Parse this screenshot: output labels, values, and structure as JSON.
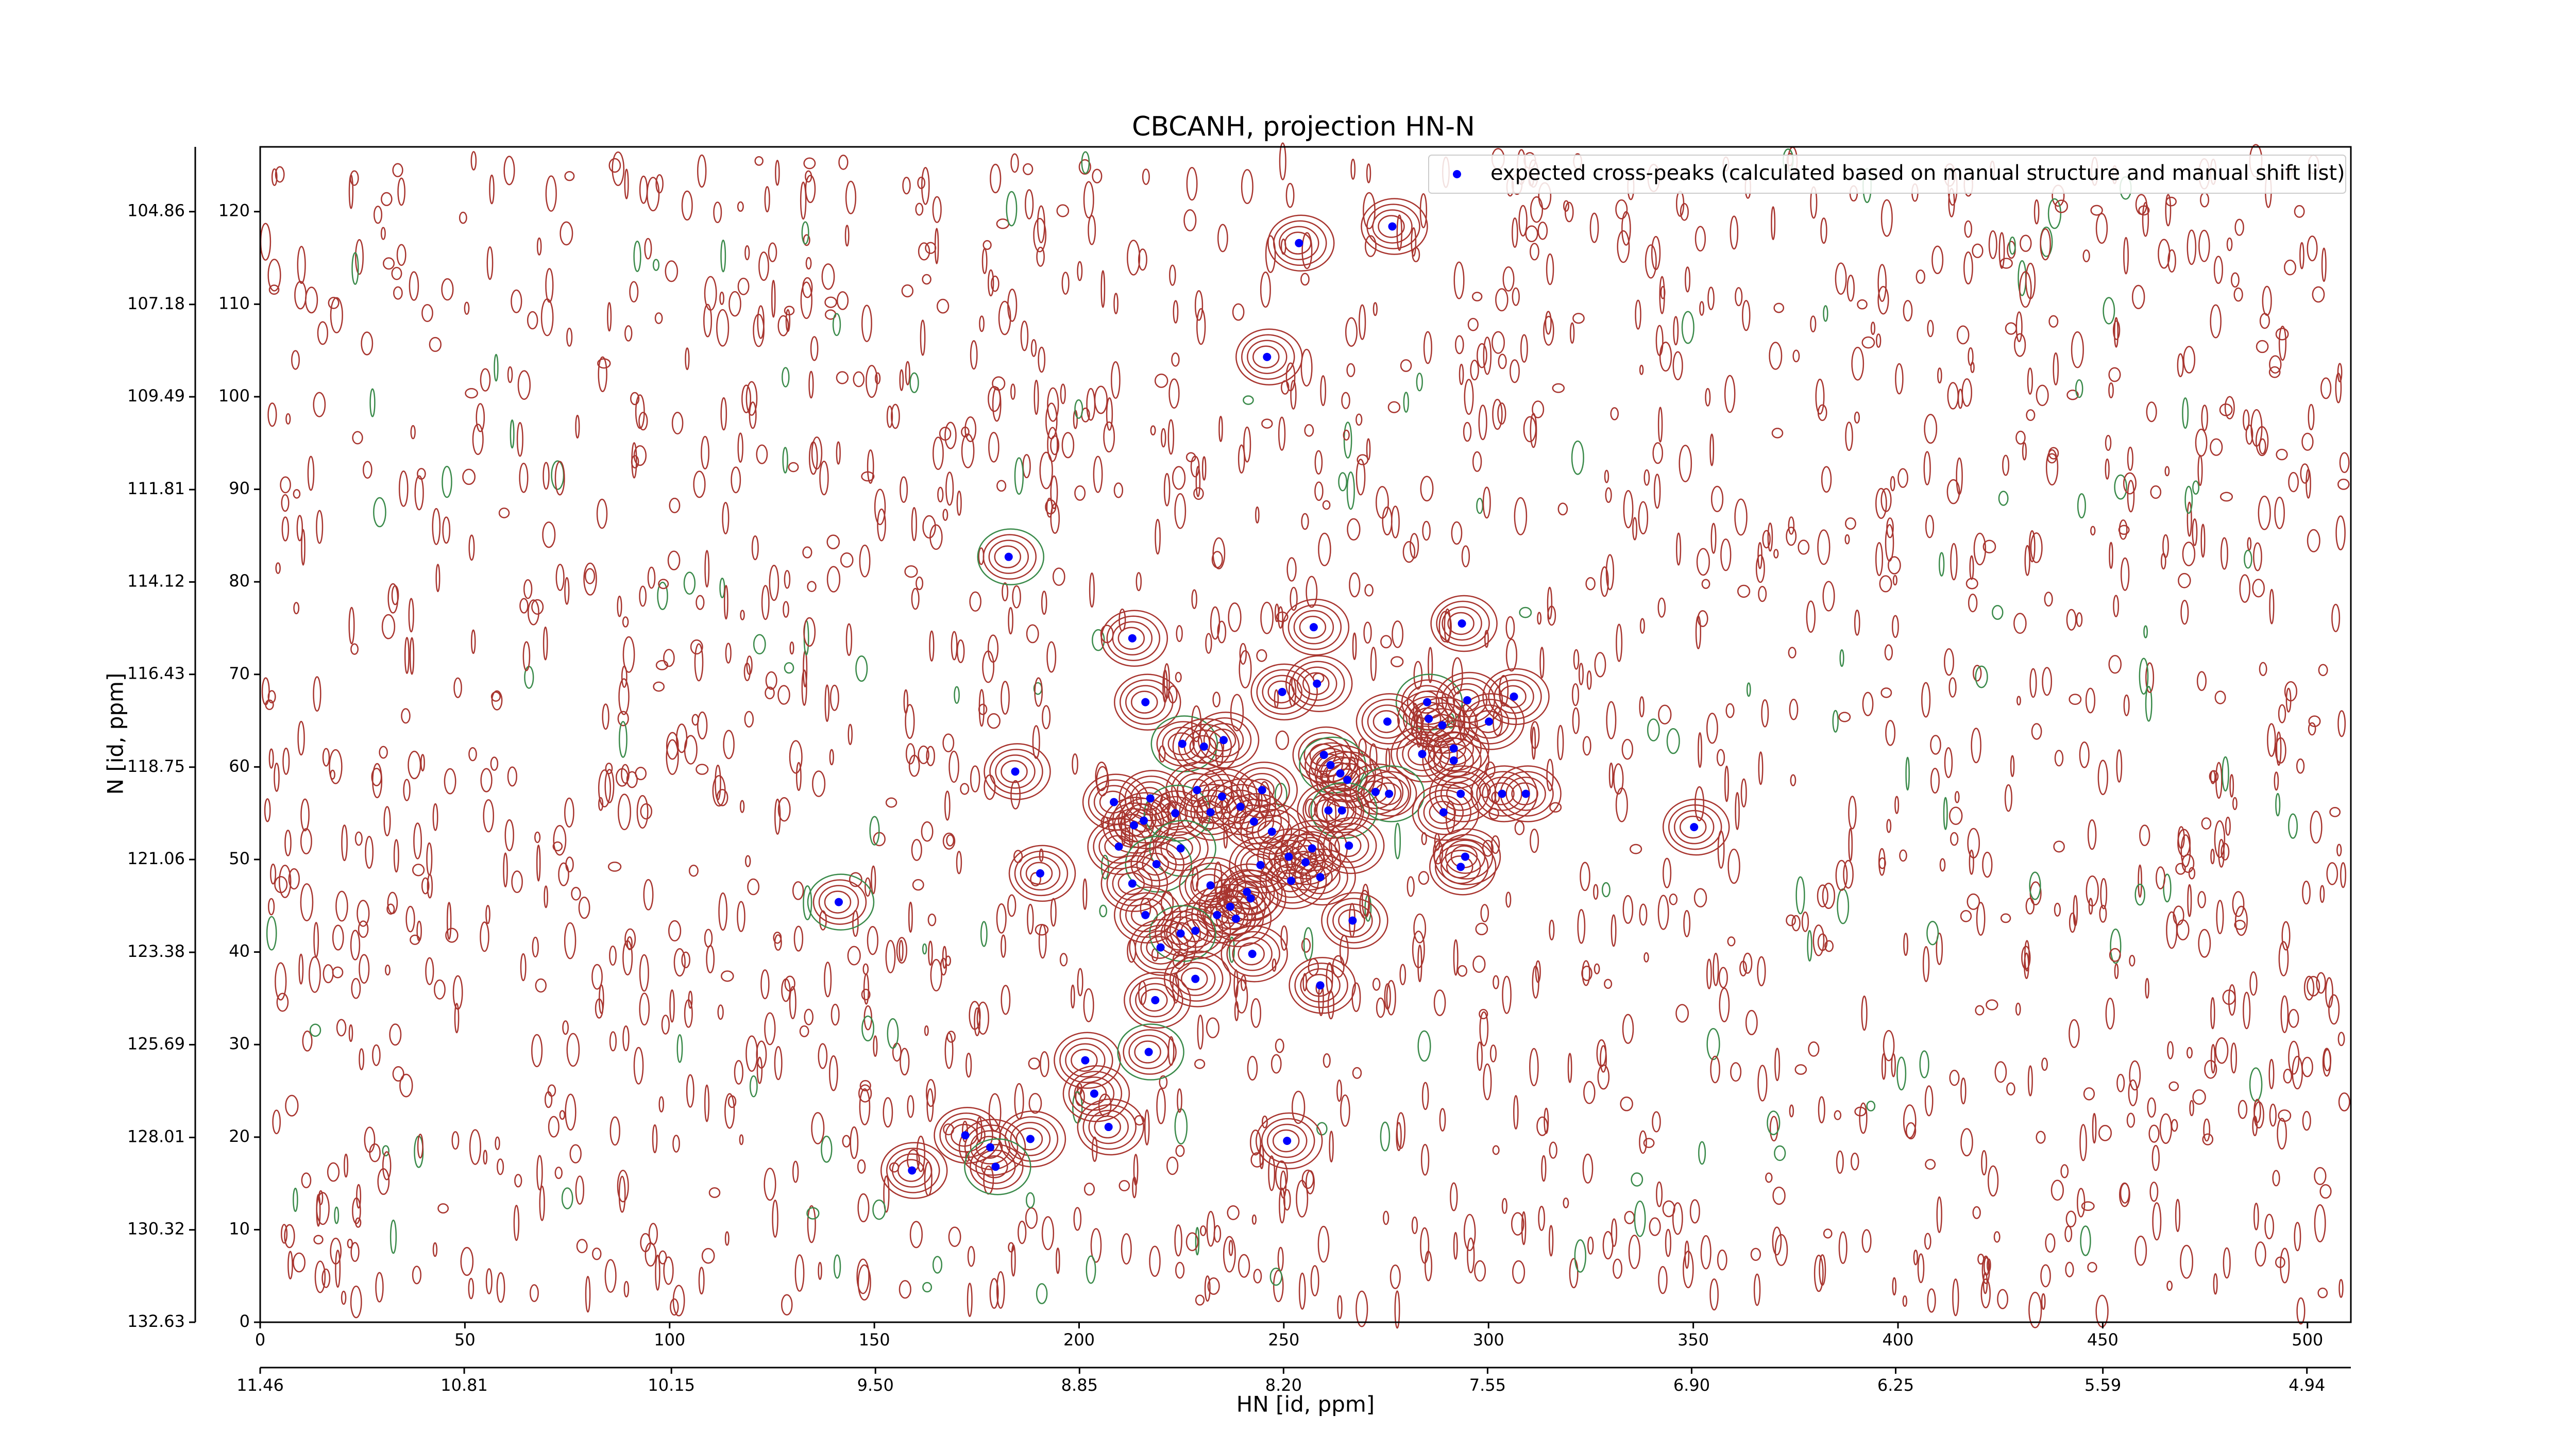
{
  "chart_data": {
    "type": "scatter",
    "title": "CBCANH, projection HN-N",
    "xlabel": "HN [id, ppm]",
    "ylabel": "N [id, ppm]",
    "xlim": [
      0,
      510.6
    ],
    "ylim": [
      0,
      127
    ],
    "xticks": [
      0,
      50,
      100,
      150,
      200,
      250,
      300,
      350,
      400,
      450,
      500
    ],
    "yticks": [
      0,
      10,
      20,
      30,
      40,
      50,
      60,
      70,
      80,
      90,
      100,
      110,
      120
    ],
    "x2lim": [
      11.46,
      4.8
    ],
    "x2ticks": [
      11.46,
      10.81,
      10.15,
      {
        "value": 9.5,
        "label": "9.50"
      },
      8.85,
      {
        "value": 8.2,
        "label": "8.20"
      },
      7.55,
      {
        "value": 6.9,
        "label": "6.90"
      },
      6.25,
      5.59,
      4.94
    ],
    "y2lim": [
      132.63,
      103.24
    ],
    "y2ticks": [
      132.63,
      130.32,
      128.01,
      125.69,
      123.38,
      121.06,
      118.75,
      116.43,
      114.12,
      111.81,
      109.49,
      107.18,
      104.86
    ],
    "legend": "upper right",
    "series": [
      {
        "name": "expected cross-peaks (calculated based on manual structure and manual shift list)",
        "color": "#0000ff",
        "x": [
          276.5,
          253.7,
          245.9,
          182.8,
          257.3,
          293.5,
          213.0,
          249.6,
          258.1,
          216.2,
          285.0,
          294.8,
          306.2,
          285.4,
          275.3,
          288.7,
          300.1,
          225.2,
          230.5,
          235.3,
          283.8,
          291.5,
          291.5,
          259.8,
          261.4,
          263.8,
          265.5,
          184.4,
          244.7,
          228.8,
          272.4,
          275.7,
          303.3,
          309.1,
          293.2,
          208.5,
          217.4,
          234.9,
          223.5,
          213.4,
          215.8,
          239.4,
          232.1,
          242.7,
          260.9,
          264.2,
          289.0,
          247.1,
          350.2,
          256.9,
          265.9,
          251.2,
          224.8,
          209.7,
          255.3,
          244.3,
          294.3,
          293.2,
          190.5,
          218.9,
          258.9,
          251.8,
          213.0,
          232.1,
          241.0,
          241.9,
          141.3,
          216.2,
          236.9,
          233.7,
          238.3,
          266.8,
          228.4,
          224.8,
          219.9,
          242.3,
          228.4,
          258.9,
          218.6,
          201.5,
          217.0,
          203.7,
          207.2,
          172.2,
          250.8,
          188.1,
          178.3,
          179.6,
          159.2
        ],
        "values": [
          118.4,
          116.6,
          104.3,
          82.7,
          75.1,
          75.5,
          73.9,
          68.1,
          69.0,
          67.0,
          67.0,
          67.2,
          67.6,
          65.2,
          64.9,
          64.5,
          64.9,
          62.5,
          62.2,
          62.9,
          61.4,
          62.0,
          60.7,
          61.3,
          60.2,
          59.3,
          58.6,
          59.5,
          57.5,
          57.5,
          57.3,
          57.1,
          57.1,
          57.1,
          57.1,
          56.2,
          56.6,
          56.8,
          55.0,
          53.7,
          54.2,
          55.7,
          55.1,
          54.1,
          55.3,
          55.3,
          55.1,
          53.0,
          53.5,
          51.2,
          51.5,
          50.3,
          51.2,
          51.4,
          49.7,
          49.4,
          50.3,
          49.2,
          48.5,
          49.5,
          48.1,
          47.7,
          47.4,
          47.2,
          46.5,
          45.8,
          45.4,
          44.0,
          44.9,
          44.0,
          43.6,
          43.4,
          42.3,
          42.0,
          40.5,
          39.8,
          37.1,
          36.4,
          34.8,
          28.3,
          29.2,
          24.7,
          21.1,
          20.2,
          19.6,
          19.8,
          18.9,
          16.8,
          16.4
        ]
      }
    ]
  }
}
